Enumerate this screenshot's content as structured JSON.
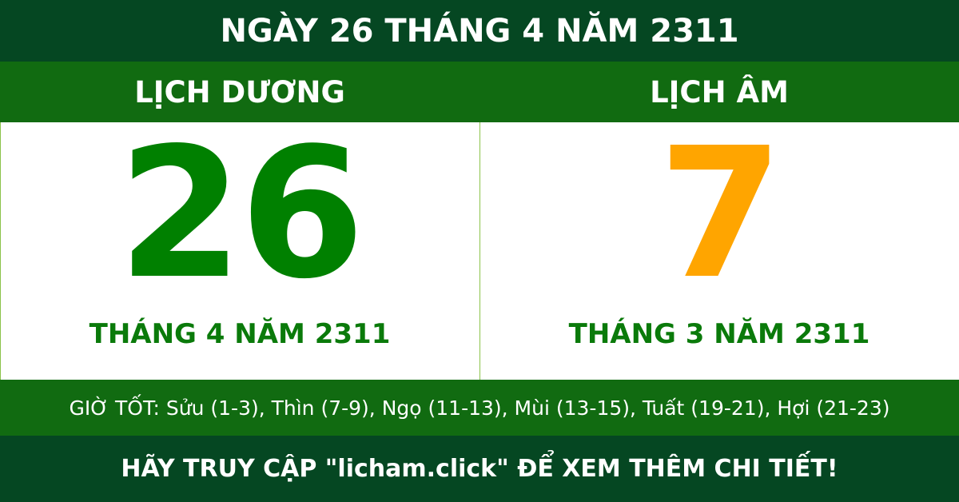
{
  "title": "NGÀY 26 THÁNG 4 NĂM 2311",
  "solar": {
    "heading": "LỊCH DƯƠNG",
    "day": "26",
    "month_year": "THÁNG 4 NĂM 2311"
  },
  "lunar": {
    "heading": "LỊCH ÂM",
    "day": "7",
    "month_year": "THÁNG 3 NĂM 2311"
  },
  "good_hours": "GIỜ TỐT: Sửu (1-3), Thìn (7-9), Ngọ (11-13), Mùi (13-15), Tuất (19-21), Hợi (21-23)",
  "cta": "HÃY TRUY CẬP \"licham.click\" ĐỂ XEM THÊM CHI TIẾT!",
  "colors": {
    "dark_green": "#054722",
    "green": "#116b11",
    "solar_number": "#008000",
    "lunar_number": "#ffa500"
  }
}
